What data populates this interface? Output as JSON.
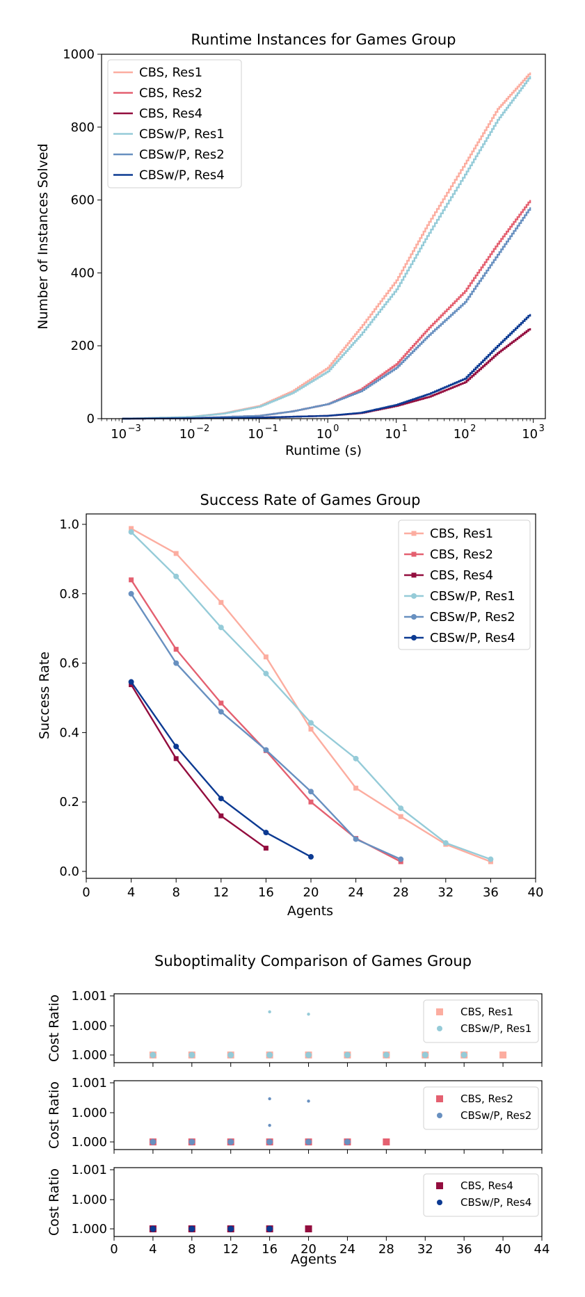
{
  "colors": {
    "cbs_res1": "#fcada0",
    "cbs_res2": "#e46070",
    "cbs_res4": "#930d3e",
    "cbsw_res1": "#95cbd8",
    "cbsw_res2": "#6890c0",
    "cbsw_res4": "#0c3a92"
  },
  "chart_data": [
    {
      "type": "line",
      "title": "Runtime Instances for Games Group",
      "xlabel": "Runtime (s)",
      "ylabel": "Number of Instances Solved",
      "xscale": "log",
      "xlim": [
        0.0005,
        1500
      ],
      "ylim": [
        0,
        1000
      ],
      "yticks": [
        0,
        200,
        400,
        600,
        800,
        1000
      ],
      "xticks": [
        {
          "base": "10",
          "exp": "−3",
          "v": -3
        },
        {
          "base": "10",
          "exp": "−2",
          "v": -2
        },
        {
          "base": "10",
          "exp": "−1",
          "v": -1
        },
        {
          "base": "10",
          "exp": "0",
          "v": 0
        },
        {
          "base": "10",
          "exp": "1",
          "v": 1
        },
        {
          "base": "10",
          "exp": "2",
          "v": 2
        },
        {
          "base": "10",
          "exp": "3",
          "v": 3
        }
      ],
      "legend_position": "top-left",
      "series": [
        {
          "name": "CBS, Res1",
          "color_key": "cbs_res1",
          "x": [
            0.001,
            0.01,
            0.03,
            0.1,
            0.3,
            1,
            3,
            10,
            30,
            100,
            300,
            900
          ],
          "y": [
            0,
            5,
            15,
            35,
            75,
            140,
            250,
            380,
            540,
            700,
            850,
            950
          ]
        },
        {
          "name": "CBS, Res2",
          "color_key": "cbs_res2",
          "x": [
            0.001,
            0.01,
            0.1,
            0.3,
            1,
            3,
            10,
            30,
            100,
            300,
            900
          ],
          "y": [
            0,
            2,
            8,
            20,
            40,
            80,
            150,
            250,
            350,
            480,
            600
          ]
        },
        {
          "name": "CBS, Res4",
          "color_key": "cbs_res4",
          "x": [
            0.001,
            0.01,
            0.1,
            1,
            3,
            10,
            30,
            100,
            300,
            900
          ],
          "y": [
            0,
            1,
            3,
            8,
            15,
            35,
            60,
            100,
            180,
            248
          ]
        },
        {
          "name": "CBSw/P, Res1",
          "color_key": "cbsw_res1",
          "x": [
            0.001,
            0.01,
            0.03,
            0.1,
            0.3,
            1,
            3,
            10,
            30,
            100,
            300,
            900
          ],
          "y": [
            0,
            5,
            14,
            33,
            70,
            130,
            230,
            355,
            510,
            670,
            820,
            940
          ]
        },
        {
          "name": "CBSw/P, Res2",
          "color_key": "cbsw_res2",
          "x": [
            0.001,
            0.01,
            0.1,
            0.3,
            1,
            3,
            10,
            30,
            100,
            300,
            900
          ],
          "y": [
            0,
            2,
            8,
            20,
            40,
            75,
            140,
            230,
            320,
            450,
            580
          ]
        },
        {
          "name": "CBSw/P, Res4",
          "color_key": "cbsw_res4",
          "x": [
            0.001,
            0.01,
            0.1,
            1,
            3,
            10,
            30,
            100,
            300,
            900
          ],
          "y": [
            0,
            1,
            3,
            8,
            16,
            38,
            68,
            110,
            200,
            287
          ]
        }
      ]
    },
    {
      "type": "line",
      "title": "Success Rate of Games Group",
      "xlabel": "Agents",
      "ylabel": "Success Rate",
      "xlim": [
        0,
        40
      ],
      "ylim": [
        -0.02,
        1.03
      ],
      "xticks": [
        0,
        4,
        8,
        12,
        16,
        20,
        24,
        28,
        32,
        36,
        40
      ],
      "yticks": [
        "0.0",
        "0.2",
        "0.4",
        "0.6",
        "0.8",
        "1.0"
      ],
      "legend_position": "top-right",
      "series": [
        {
          "name": "CBS, Res1",
          "color_key": "cbs_res1",
          "marker": "square",
          "x": [
            4,
            8,
            12,
            16,
            20,
            24,
            28,
            32,
            36
          ],
          "y": [
            0.988,
            0.916,
            0.775,
            0.618,
            0.41,
            0.24,
            0.158,
            0.078,
            0.028
          ]
        },
        {
          "name": "CBS, Res2",
          "color_key": "cbs_res2",
          "marker": "square",
          "x": [
            4,
            8,
            12,
            16,
            20,
            24,
            28
          ],
          "y": [
            0.84,
            0.64,
            0.485,
            0.348,
            0.2,
            0.095,
            0.028
          ]
        },
        {
          "name": "CBS, Res4",
          "color_key": "cbs_res4",
          "marker": "square",
          "x": [
            4,
            8,
            12,
            16
          ],
          "y": [
            0.538,
            0.325,
            0.16,
            0.067
          ]
        },
        {
          "name": "CBSw/P, Res1",
          "color_key": "cbsw_res1",
          "marker": "circle",
          "x": [
            4,
            8,
            12,
            16,
            20,
            24,
            28,
            32,
            36
          ],
          "y": [
            0.978,
            0.85,
            0.703,
            0.57,
            0.428,
            0.325,
            0.182,
            0.082,
            0.035
          ]
        },
        {
          "name": "CBSw/P, Res2",
          "color_key": "cbsw_res2",
          "marker": "circle",
          "x": [
            4,
            8,
            12,
            16,
            20,
            24,
            28
          ],
          "y": [
            0.8,
            0.6,
            0.46,
            0.35,
            0.23,
            0.093,
            0.035
          ]
        },
        {
          "name": "CBSw/P, Res4",
          "color_key": "cbsw_res4",
          "marker": "circle",
          "x": [
            4,
            8,
            12,
            16,
            20
          ],
          "y": [
            0.546,
            0.36,
            0.21,
            0.112,
            0.042
          ]
        }
      ]
    },
    {
      "type": "scatter",
      "title": "Suboptimality Comparison of Games Group",
      "xlabel": "Agents",
      "ylabel": "Cost Ratio",
      "xlim": [
        0,
        44
      ],
      "xticks": [
        0,
        4,
        8,
        12,
        16,
        20,
        24,
        28,
        32,
        36,
        40,
        44
      ],
      "yticks": [
        "1.000",
        "1.000",
        "1.001"
      ],
      "legend_position": "top-right",
      "panels": [
        {
          "series": [
            {
              "name": "CBS, Res1",
              "color_key": "cbs_res1",
              "marker": "square",
              "x": [
                4,
                8,
                12,
                16,
                20,
                24,
                28,
                32,
                36,
                40
              ],
              "y": [
                1.0,
                1.0,
                1.0,
                1.0,
                1.0,
                1.0,
                1.0,
                1.0,
                1.0,
                1.0
              ]
            },
            {
              "name": "CBSw/P, Res1",
              "color_key": "cbsw_res1",
              "marker": "circle",
              "x": [
                4,
                8,
                12,
                16,
                16,
                20,
                20,
                24,
                28,
                32,
                36
              ],
              "y": [
                1.0,
                1.0,
                1.0,
                1.0,
                1.00073,
                1.0,
                1.00069,
                1.0,
                1.0,
                1.0,
                1.0
              ]
            }
          ]
        },
        {
          "series": [
            {
              "name": "CBS, Res2",
              "color_key": "cbs_res2",
              "marker": "square",
              "x": [
                4,
                8,
                12,
                16,
                20,
                24,
                28
              ],
              "y": [
                1.0,
                1.0,
                1.0,
                1.0,
                1.0,
                1.0,
                1.0
              ]
            },
            {
              "name": "CBSw/P, Res2",
              "color_key": "cbsw_res2",
              "marker": "circle",
              "x": [
                4,
                8,
                12,
                16,
                16,
                16,
                20,
                20,
                24
              ],
              "y": [
                1.0,
                1.0,
                1.0,
                1.0,
                1.00028,
                1.00073,
                1.0,
                1.00069,
                1.0
              ]
            }
          ]
        },
        {
          "series": [
            {
              "name": "CBS, Res4",
              "color_key": "cbs_res4",
              "marker": "square",
              "x": [
                4,
                8,
                12,
                16,
                20
              ],
              "y": [
                1.0,
                1.0,
                1.0,
                1.0,
                1.0
              ]
            },
            {
              "name": "CBSw/P, Res4",
              "color_key": "cbsw_res4",
              "marker": "circle",
              "x": [
                4,
                8,
                12,
                16
              ],
              "y": [
                1.0,
                1.0,
                1.0,
                1.0
              ]
            }
          ]
        }
      ]
    }
  ]
}
